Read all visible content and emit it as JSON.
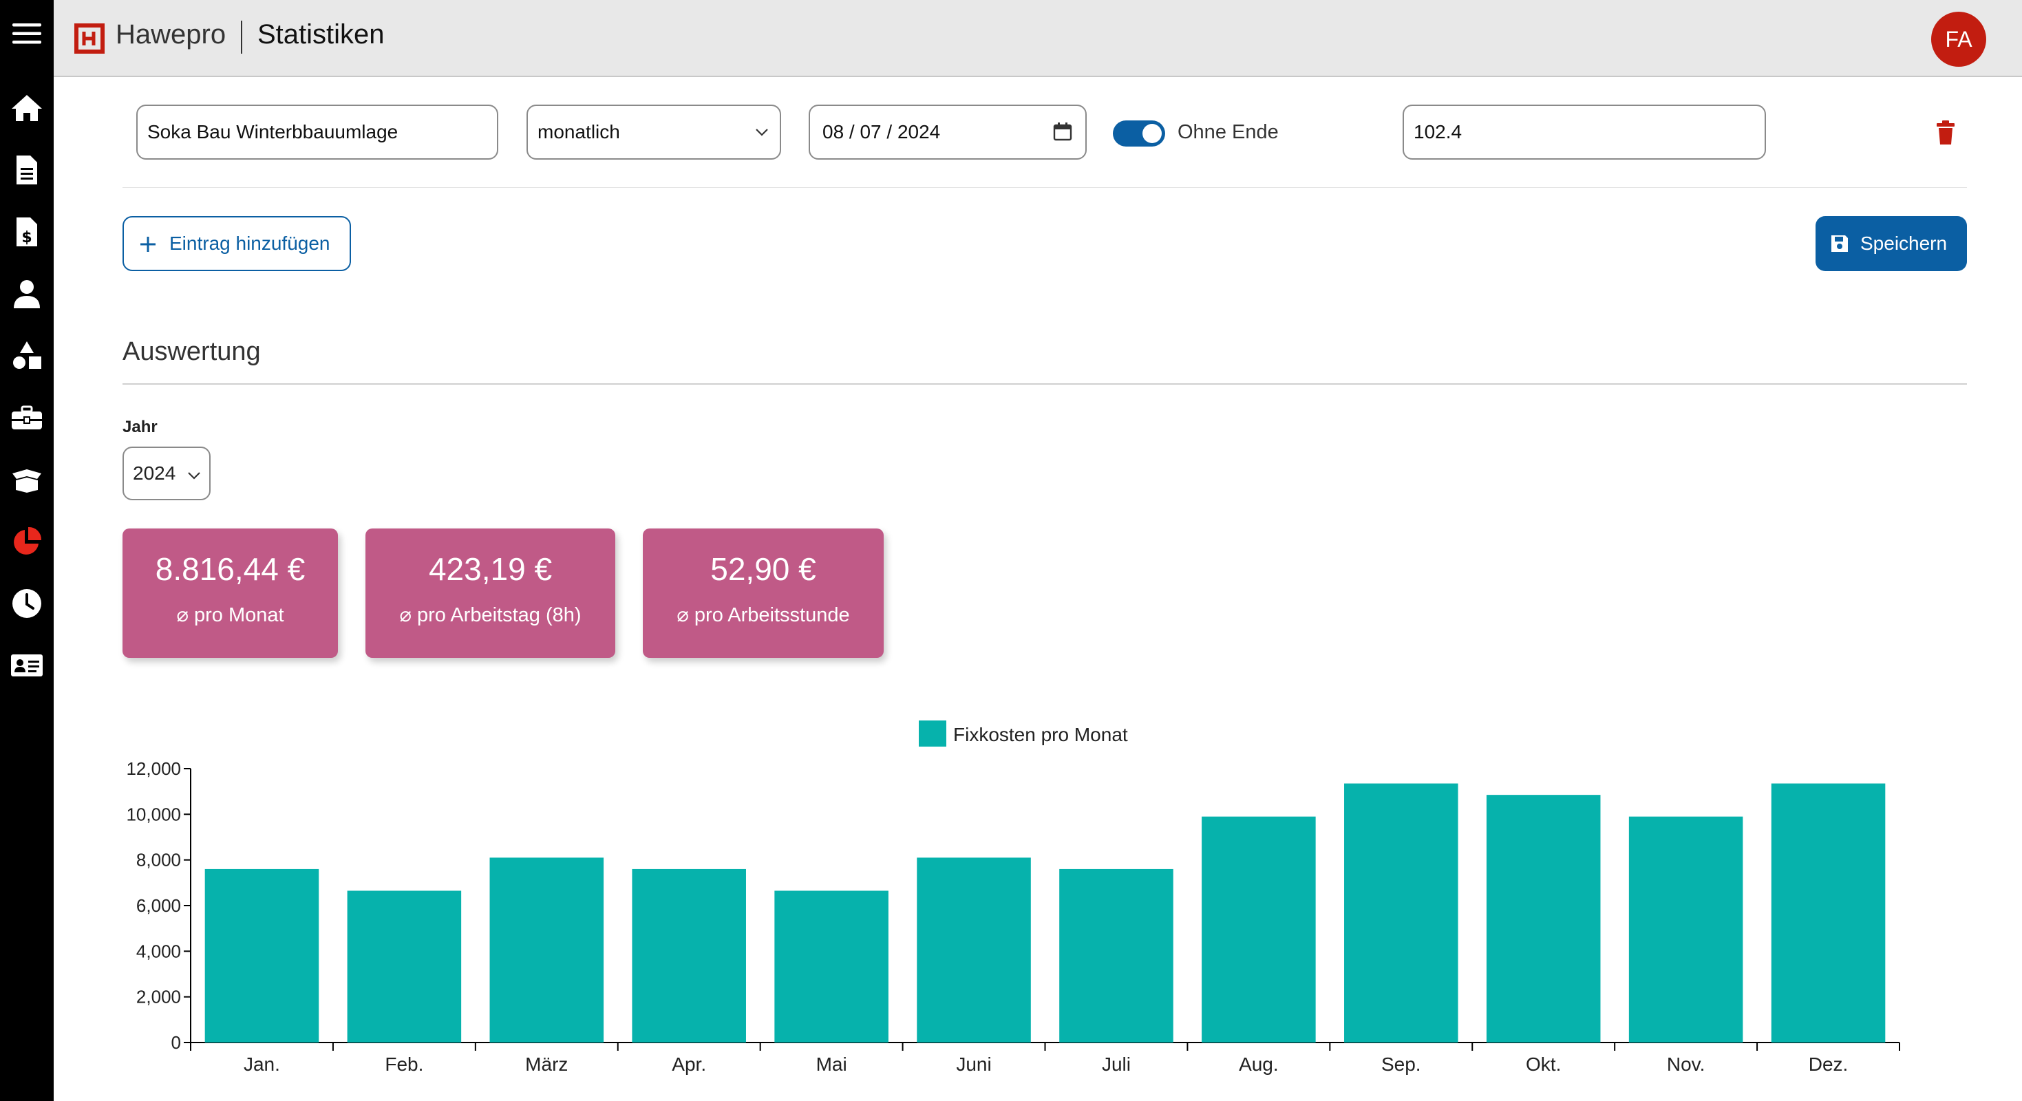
{
  "header": {
    "brand": "Hawepro",
    "page_title": "Statistiken",
    "avatar_initials": "FA"
  },
  "sidebar": {
    "items": [
      {
        "icon": "home-icon"
      },
      {
        "icon": "document-icon"
      },
      {
        "icon": "invoice-icon"
      },
      {
        "icon": "person-icon"
      },
      {
        "icon": "shapes-icon"
      },
      {
        "icon": "toolbox-icon"
      },
      {
        "icon": "box-icon"
      },
      {
        "icon": "pie-chart-icon",
        "active": true
      },
      {
        "icon": "clock-icon"
      },
      {
        "icon": "id-card-icon"
      }
    ],
    "active_color": "#e8271c"
  },
  "entry": {
    "name_value": "Soka Bau Winterbbauumlage",
    "interval_value": "monatlich",
    "date_value": "08 / 07 / 2024",
    "toggle_label": "Ohne Ende",
    "toggle_on": true,
    "amount_value": "102.4"
  },
  "actions": {
    "add_label": "Eintrag hinzufügen",
    "save_label": "Speichern"
  },
  "evaluation": {
    "title": "Auswertung",
    "year_label": "Jahr",
    "year_value": "2024"
  },
  "kpis": [
    {
      "value": "8.816,44 €",
      "label": "pro Monat"
    },
    {
      "value": "423,19 €",
      "label": "pro Arbeitstag (8h)"
    },
    {
      "value": "52,90 €",
      "label": "pro Arbeitsstunde"
    }
  ],
  "colors": {
    "primary": "#0b5fa3",
    "kpi_card": "#c05a87",
    "bar": "#06b2ac",
    "delete": "#c21d10"
  },
  "chart_data": {
    "type": "bar",
    "legend_position": "top-center",
    "categories": [
      "Jan.",
      "Feb.",
      "März",
      "Apr.",
      "Mai",
      "Juni",
      "Juli",
      "Aug.",
      "Sep.",
      "Okt.",
      "Nov.",
      "Dez."
    ],
    "series": [
      {
        "name": "Fixkosten pro Monat",
        "values": [
          7600,
          6650,
          8100,
          7600,
          6650,
          8100,
          7600,
          9900,
          11350,
          10850,
          9900,
          11350
        ]
      }
    ],
    "y_ticks": [
      "0",
      "2,000",
      "4,000",
      "6,000",
      "8,000",
      "10,000",
      "12,000"
    ],
    "ylim": [
      0,
      12000
    ],
    "grid": false
  }
}
